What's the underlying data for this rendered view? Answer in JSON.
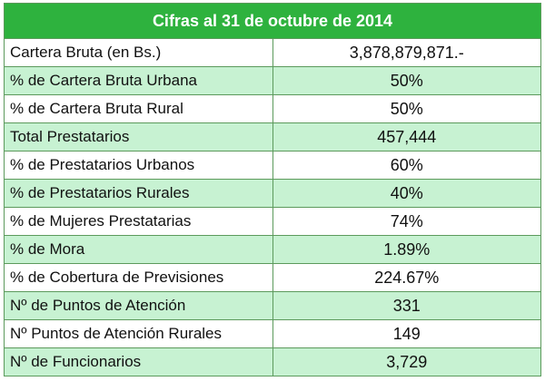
{
  "table": {
    "title": "Cifras al 31 de octubre de 2014",
    "rows": [
      {
        "label": "Cartera Bruta (en Bs.)",
        "value": "3,878,879,871.-"
      },
      {
        "label": "% de Cartera Bruta Urbana",
        "value": "50%"
      },
      {
        "label": "% de Cartera Bruta Rural",
        "value": "50%"
      },
      {
        "label": "Total Prestatarios",
        "value": "457,444"
      },
      {
        "label": "% de Prestatarios Urbanos",
        "value": "60%"
      },
      {
        "label": "% de Prestatarios Rurales",
        "value": "40%"
      },
      {
        "label": "% de Mujeres Prestatarias",
        "value": "74%"
      },
      {
        "label": "% de Mora",
        "value": "1.89%"
      },
      {
        "label": "% de Cobertura de Previsiones",
        "value": "224.67%"
      },
      {
        "label": "Nº de Puntos de Atención",
        "value": "331"
      },
      {
        "label": "Nº Puntos de Atención Rurales",
        "value": "149"
      },
      {
        "label": "Nº de Funcionarios",
        "value": "3,729"
      }
    ]
  },
  "colors": {
    "header_bg": "#2eb23e",
    "stripe_bg": "#c7f2d2",
    "border": "#5c9a5c"
  }
}
